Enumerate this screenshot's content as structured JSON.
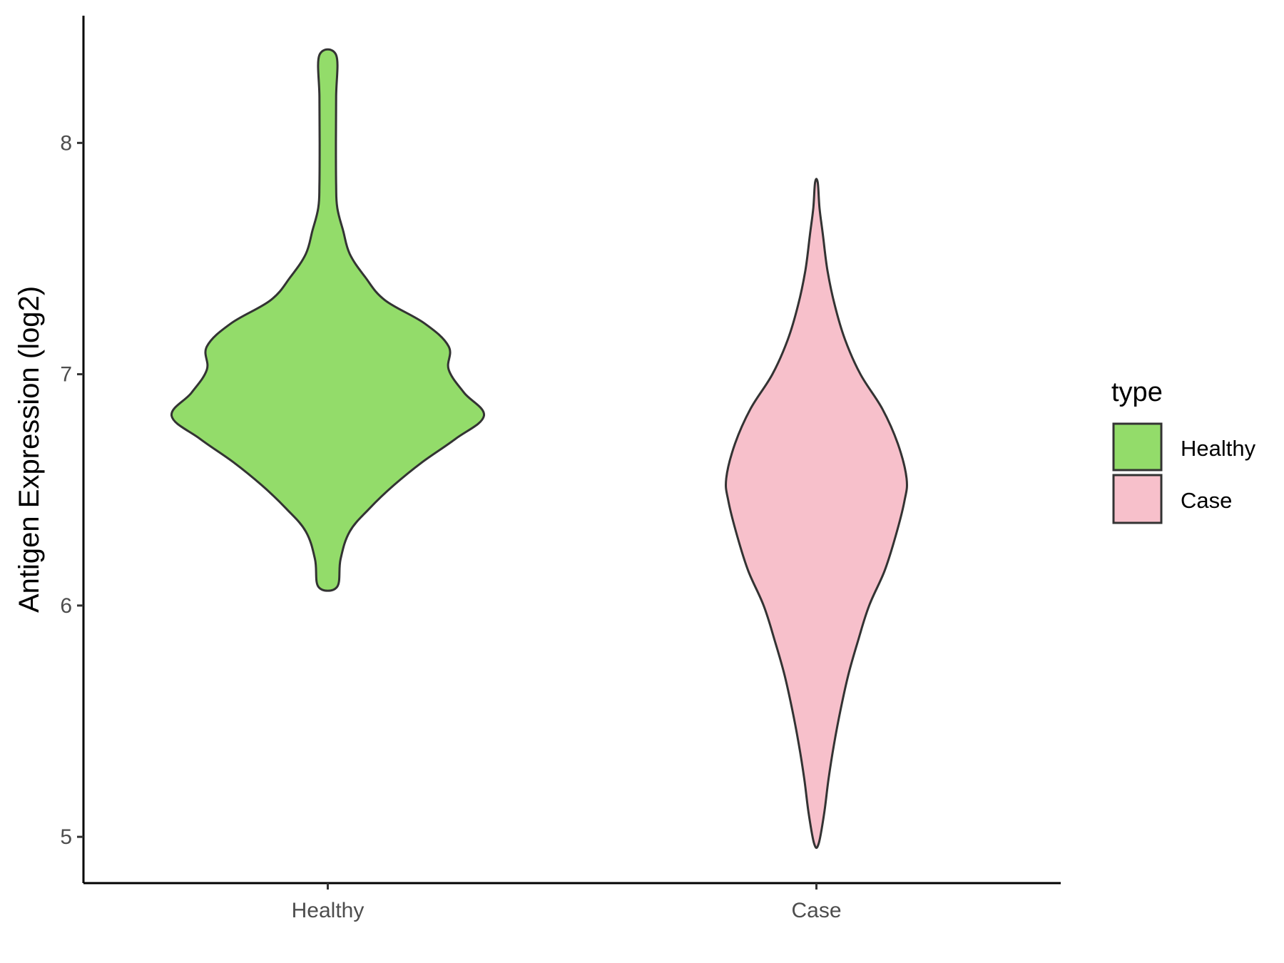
{
  "chart_data": {
    "type": "violin",
    "ylabel": "Antigen Expression (log2)",
    "xlabel": "",
    "ylim": [
      4.8,
      8.55
    ],
    "y_ticks": [
      "5",
      "6",
      "7",
      "8"
    ],
    "grid": false,
    "categories": [
      "Healthy",
      "Case"
    ],
    "legend": {
      "title": "type",
      "position": "right",
      "entries": [
        "Healthy",
        "Case"
      ]
    },
    "series": [
      {
        "name": "Healthy",
        "color": "#93dc6a",
        "min": 6.08,
        "max": 8.38,
        "density": [
          [
            6.08,
            0.042
          ],
          [
            6.2,
            0.058
          ],
          [
            6.32,
            0.1
          ],
          [
            6.42,
            0.19
          ],
          [
            6.52,
            0.3
          ],
          [
            6.62,
            0.43
          ],
          [
            6.72,
            0.58
          ],
          [
            6.82,
            0.71
          ],
          [
            6.92,
            0.62
          ],
          [
            7.02,
            0.55
          ],
          [
            7.12,
            0.55
          ],
          [
            7.22,
            0.44
          ],
          [
            7.32,
            0.26
          ],
          [
            7.42,
            0.17
          ],
          [
            7.52,
            0.1
          ],
          [
            7.62,
            0.07
          ],
          [
            7.72,
            0.043
          ],
          [
            7.82,
            0.038
          ],
          [
            8.0,
            0.037
          ],
          [
            8.2,
            0.038
          ],
          [
            8.38,
            0.038
          ]
        ]
      },
      {
        "name": "Case",
        "color": "#f7c0cb",
        "min": 4.97,
        "max": 7.83,
        "density": [
          [
            4.97,
            0.01
          ],
          [
            5.1,
            0.035
          ],
          [
            5.25,
            0.055
          ],
          [
            5.4,
            0.08
          ],
          [
            5.55,
            0.11
          ],
          [
            5.7,
            0.145
          ],
          [
            5.85,
            0.19
          ],
          [
            6.0,
            0.24
          ],
          [
            6.15,
            0.31
          ],
          [
            6.3,
            0.36
          ],
          [
            6.45,
            0.4
          ],
          [
            6.55,
            0.41
          ],
          [
            6.7,
            0.37
          ],
          [
            6.85,
            0.3
          ],
          [
            7.0,
            0.2
          ],
          [
            7.15,
            0.13
          ],
          [
            7.3,
            0.083
          ],
          [
            7.45,
            0.05
          ],
          [
            7.6,
            0.03
          ],
          [
            7.72,
            0.014
          ],
          [
            7.83,
            0.006
          ]
        ]
      }
    ]
  }
}
